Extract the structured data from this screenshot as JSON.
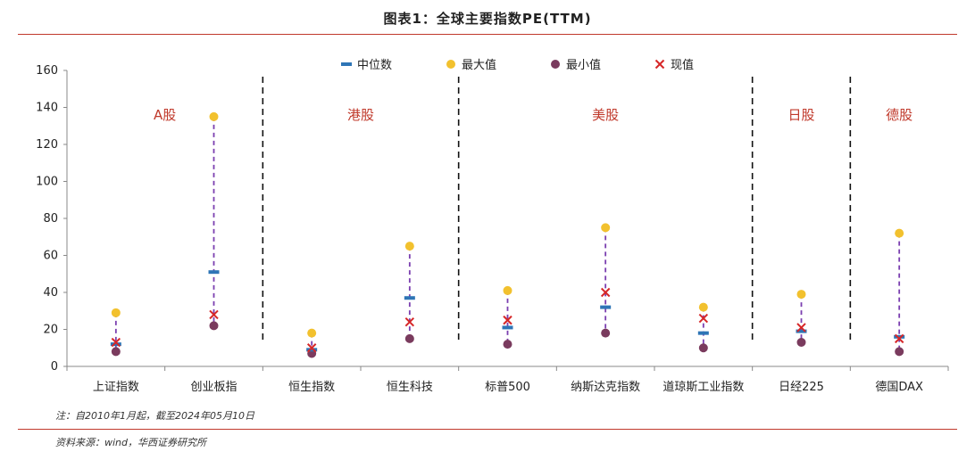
{
  "title": "图表1：全球主要指数PE(TTM)",
  "note": "注：自2010年1月起，截至2024年05月10日",
  "source": "资料来源：wind，华西证券研究所",
  "colors": {
    "median": "#2e75b6",
    "max": "#f2c12e",
    "min": "#7a3b5e",
    "current": "#d62728",
    "range_line": "#7b3fb0",
    "rule": "#c0392b"
  },
  "chart_data": {
    "type": "scatter",
    "title": "图表1：全球主要指数PE(TTM)",
    "xlabel": "",
    "ylabel": "",
    "ylim": [
      0,
      160
    ],
    "yticks": [
      0,
      20,
      40,
      60,
      80,
      100,
      120,
      140,
      160
    ],
    "grid": false,
    "legend_position": "top",
    "categories": [
      "上证指数",
      "创业板指",
      "恒生指数",
      "恒生科技",
      "标普500",
      "纳斯达克指数",
      "道琼斯工业指数",
      "日经225",
      "德国DAX"
    ],
    "series": [
      {
        "name": "中位数",
        "marker": "dash",
        "values": [
          12,
          51,
          9,
          37,
          21,
          32,
          18,
          19,
          16
        ]
      },
      {
        "name": "最大值",
        "marker": "circle",
        "values": [
          29,
          135,
          18,
          65,
          41,
          75,
          32,
          39,
          72
        ]
      },
      {
        "name": "最小值",
        "marker": "circle",
        "values": [
          8,
          22,
          7,
          15,
          12,
          18,
          10,
          13,
          8
        ]
      },
      {
        "name": "现值",
        "marker": "x",
        "values": [
          13,
          28,
          10,
          24,
          25,
          40,
          26,
          21,
          15
        ]
      }
    ],
    "regions": [
      {
        "label": "A股",
        "categories": [
          "上证指数",
          "创业板指"
        ]
      },
      {
        "label": "港股",
        "categories": [
          "恒生指数",
          "恒生科技"
        ]
      },
      {
        "label": "美股",
        "categories": [
          "标普500",
          "纳斯达克指数",
          "道琼斯工业指数"
        ]
      },
      {
        "label": "日股",
        "categories": [
          "日经225"
        ]
      },
      {
        "label": "德股",
        "categories": [
          "德国DAX"
        ]
      }
    ]
  }
}
